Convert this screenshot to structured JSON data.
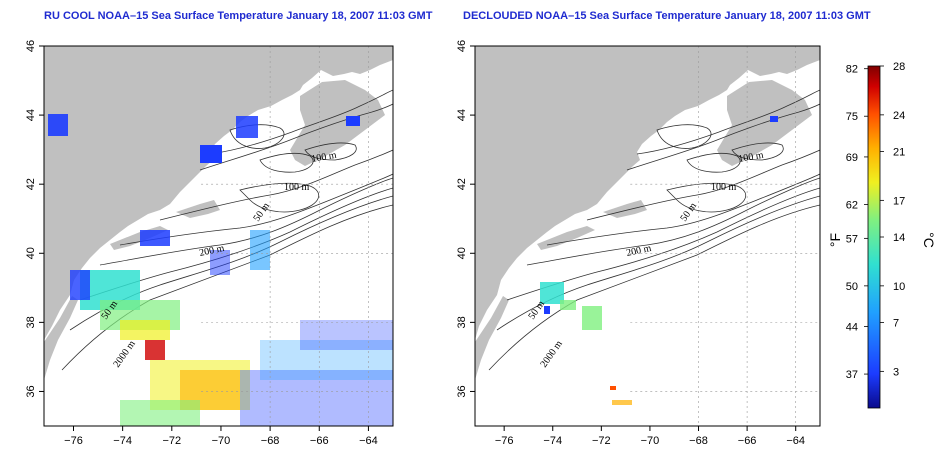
{
  "panels": [
    {
      "id": "left",
      "title": "RU COOL NOAA–15 Sea Surface Temperature January 18, 2007 11:03 GMT",
      "contour_labels": [
        "100 m",
        "100 m",
        "50 m",
        "200 m",
        "50 m",
        "2000 m"
      ]
    },
    {
      "id": "right",
      "title": "DECLOUDED NOAA–15 Sea Surface Temperature January 18, 2007 11:03 GMT",
      "contour_labels": [
        "100 m",
        "100 m",
        "50 m",
        "200 m",
        "50 m",
        "2000 m"
      ]
    }
  ],
  "axes": {
    "x_ticks": [
      "−76",
      "−74",
      "−72",
      "−70",
      "−68",
      "−66",
      "−64"
    ],
    "y_ticks": [
      "36",
      "38",
      "40",
      "42",
      "44",
      "46"
    ],
    "lon_range": [
      -77.2,
      -63.0
    ],
    "lat_range": [
      35.0,
      46.0
    ]
  },
  "colorbar": {
    "fahrenheit_ticks": [
      "82",
      "75",
      "69",
      "62",
      "57",
      "50",
      "44",
      "37"
    ],
    "celsius_ticks": [
      "28",
      "24",
      "21",
      "17",
      "14",
      "10",
      "7",
      "3"
    ],
    "unit_f": "°F",
    "unit_c": "°C",
    "celsius_range": [
      0,
      28
    ],
    "colors": [
      "#0a0a8c",
      "#1c3cff",
      "#20a0ff",
      "#30e0d0",
      "#80f080",
      "#f0f020",
      "#ffb000",
      "#ff5000",
      "#d00000",
      "#800000"
    ]
  },
  "colors": {
    "land": "#c0c0c0",
    "water_empty": "#ffffff",
    "grid": "#9a9a9a"
  }
}
